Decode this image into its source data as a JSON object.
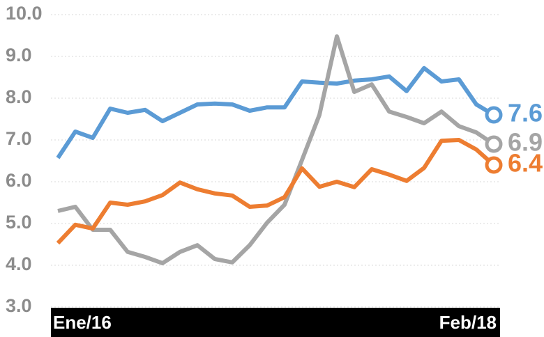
{
  "chart_data": {
    "type": "line",
    "categories": [
      "Ene/16",
      null,
      null,
      null,
      null,
      null,
      null,
      null,
      null,
      null,
      null,
      null,
      null,
      null,
      null,
      null,
      null,
      null,
      null,
      null,
      null,
      null,
      null,
      null,
      null,
      "Feb/18"
    ],
    "series": [
      {
        "color": "#5b9bd5",
        "values": [
          6.57,
          7.2,
          7.05,
          7.75,
          7.65,
          7.72,
          7.45,
          7.65,
          7.85,
          7.87,
          7.85,
          7.7,
          7.78,
          7.78,
          8.4,
          8.37,
          8.35,
          8.42,
          8.45,
          8.52,
          8.17,
          8.72,
          8.4,
          8.45,
          7.85,
          7.6
        ],
        "value_labels": [
          null,
          null,
          null,
          null,
          null,
          null,
          null,
          null,
          null,
          null,
          null,
          null,
          null,
          null,
          null,
          null,
          null,
          null,
          null,
          null,
          null,
          null,
          null,
          null,
          null,
          "7.6"
        ]
      },
      {
        "color": "#a5a5a5",
        "values": [
          5.3,
          5.4,
          4.85,
          4.85,
          4.32,
          4.2,
          4.05,
          4.32,
          4.48,
          4.15,
          4.07,
          4.48,
          5.02,
          5.45,
          6.52,
          7.6,
          9.48,
          8.15,
          8.33,
          7.68,
          7.55,
          7.4,
          7.68,
          7.33,
          7.18,
          6.9
        ],
        "value_labels": [
          null,
          null,
          null,
          null,
          null,
          null,
          null,
          null,
          null,
          null,
          null,
          null,
          null,
          null,
          null,
          null,
          null,
          null,
          null,
          null,
          null,
          null,
          null,
          null,
          null,
          "6.9"
        ]
      },
      {
        "color": "#ed7d31",
        "values": [
          4.53,
          4.97,
          4.88,
          5.5,
          5.45,
          5.53,
          5.68,
          5.98,
          5.82,
          5.72,
          5.67,
          5.4,
          5.43,
          5.63,
          6.32,
          5.88,
          6.0,
          5.87,
          6.3,
          6.17,
          6.02,
          6.33,
          6.98,
          7.0,
          6.77,
          6.4
        ],
        "value_labels": [
          null,
          null,
          null,
          null,
          null,
          null,
          null,
          null,
          null,
          null,
          null,
          null,
          null,
          null,
          null,
          null,
          null,
          null,
          null,
          null,
          null,
          null,
          null,
          null,
          null,
          "6.4"
        ]
      }
    ],
    "ylim": [
      3,
      10
    ],
    "yticks": [
      {
        "value": 3,
        "label": "3.0"
      },
      {
        "value": 4,
        "label": "4.0"
      },
      {
        "value": 5,
        "label": "5.0"
      },
      {
        "value": 6,
        "label": "6.0"
      },
      {
        "value": 7,
        "label": "7.0"
      },
      {
        "value": 8,
        "label": "8.0"
      },
      {
        "value": 9,
        "label": "9.0"
      },
      {
        "value": 10,
        "label": "10.0"
      }
    ],
    "grid": true
  }
}
